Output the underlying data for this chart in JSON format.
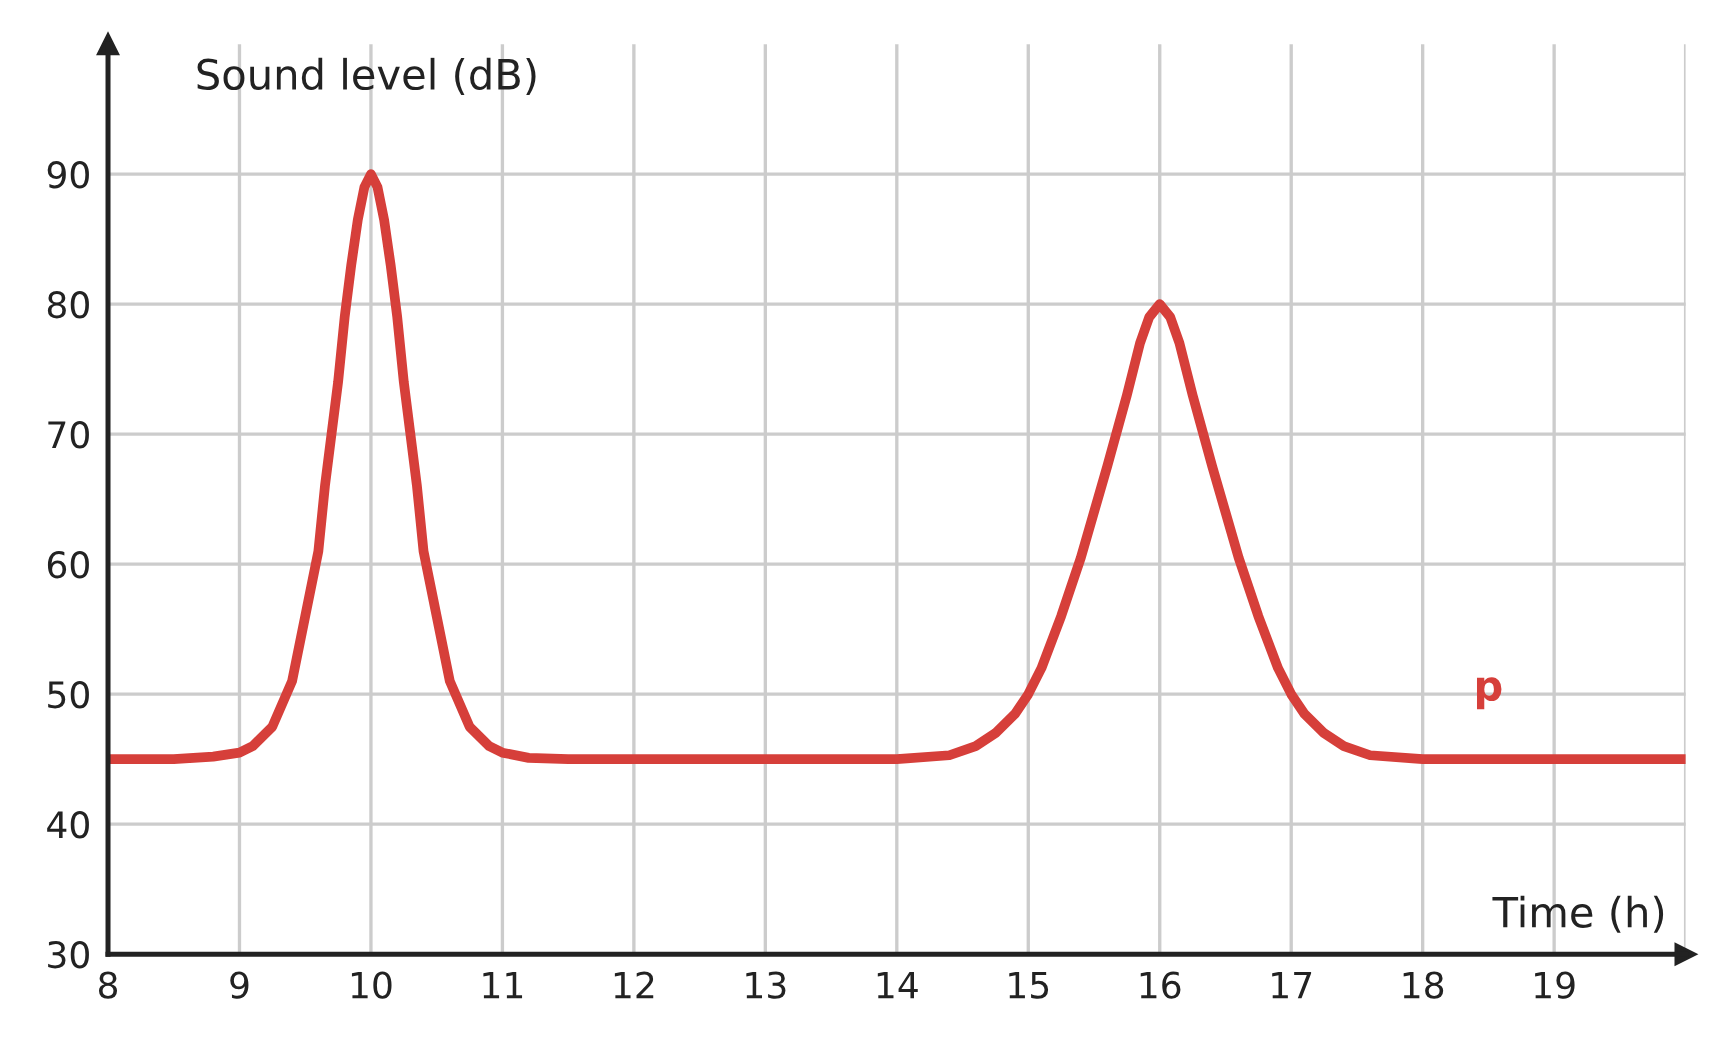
{
  "chart_data": {
    "type": "line",
    "xlabel": "Time (h)",
    "ylabel": "Sound level (dB)",
    "x": [
      8,
      8.5,
      8.8,
      9,
      9.1,
      9.25,
      9.4,
      9.5,
      9.6,
      9.65,
      9.75,
      9.8,
      9.85,
      9.9,
      9.95,
      10,
      10.05,
      10.1,
      10.15,
      10.2,
      10.25,
      10.35,
      10.4,
      10.5,
      10.6,
      10.75,
      10.9,
      11,
      11.2,
      11.5,
      14,
      14.4,
      14.6,
      14.75,
      14.9,
      15,
      15.1,
      15.25,
      15.4,
      15.5,
      15.6,
      15.75,
      15.85,
      15.92,
      16,
      16.08,
      16.15,
      16.25,
      16.4,
      16.5,
      16.6,
      16.75,
      16.9,
      17,
      17.1,
      17.25,
      17.4,
      17.6,
      18,
      19,
      20
    ],
    "series": [
      {
        "name": "p",
        "color": "#d63f3a",
        "values": [
          45,
          45,
          45.2,
          45.5,
          46,
          47.5,
          51,
          56,
          61,
          66,
          74,
          79,
          83,
          86.5,
          89,
          90,
          89,
          86.5,
          83,
          79,
          74,
          66,
          61,
          56,
          51,
          47.5,
          46,
          45.5,
          45.1,
          45,
          45,
          45.3,
          46,
          47,
          48.5,
          50,
          52,
          56,
          60.5,
          64,
          67.5,
          73,
          77,
          79,
          80,
          79,
          77,
          73,
          67.5,
          64,
          60.5,
          56,
          52,
          50,
          48.5,
          47,
          46,
          45.3,
          45,
          45,
          45
        ]
      }
    ],
    "xlim": [
      8,
      20
    ],
    "ylim": [
      30,
      100
    ],
    "xticks": [
      8,
      9,
      10,
      11,
      12,
      13,
      14,
      15,
      16,
      17,
      18,
      19,
      {
        "value": 20,
        "label": null
      }
    ],
    "yticks": [
      30,
      40,
      50,
      60,
      70,
      80,
      90
    ],
    "grid": true,
    "legend": false,
    "marker": "none",
    "line_style": "solid"
  }
}
